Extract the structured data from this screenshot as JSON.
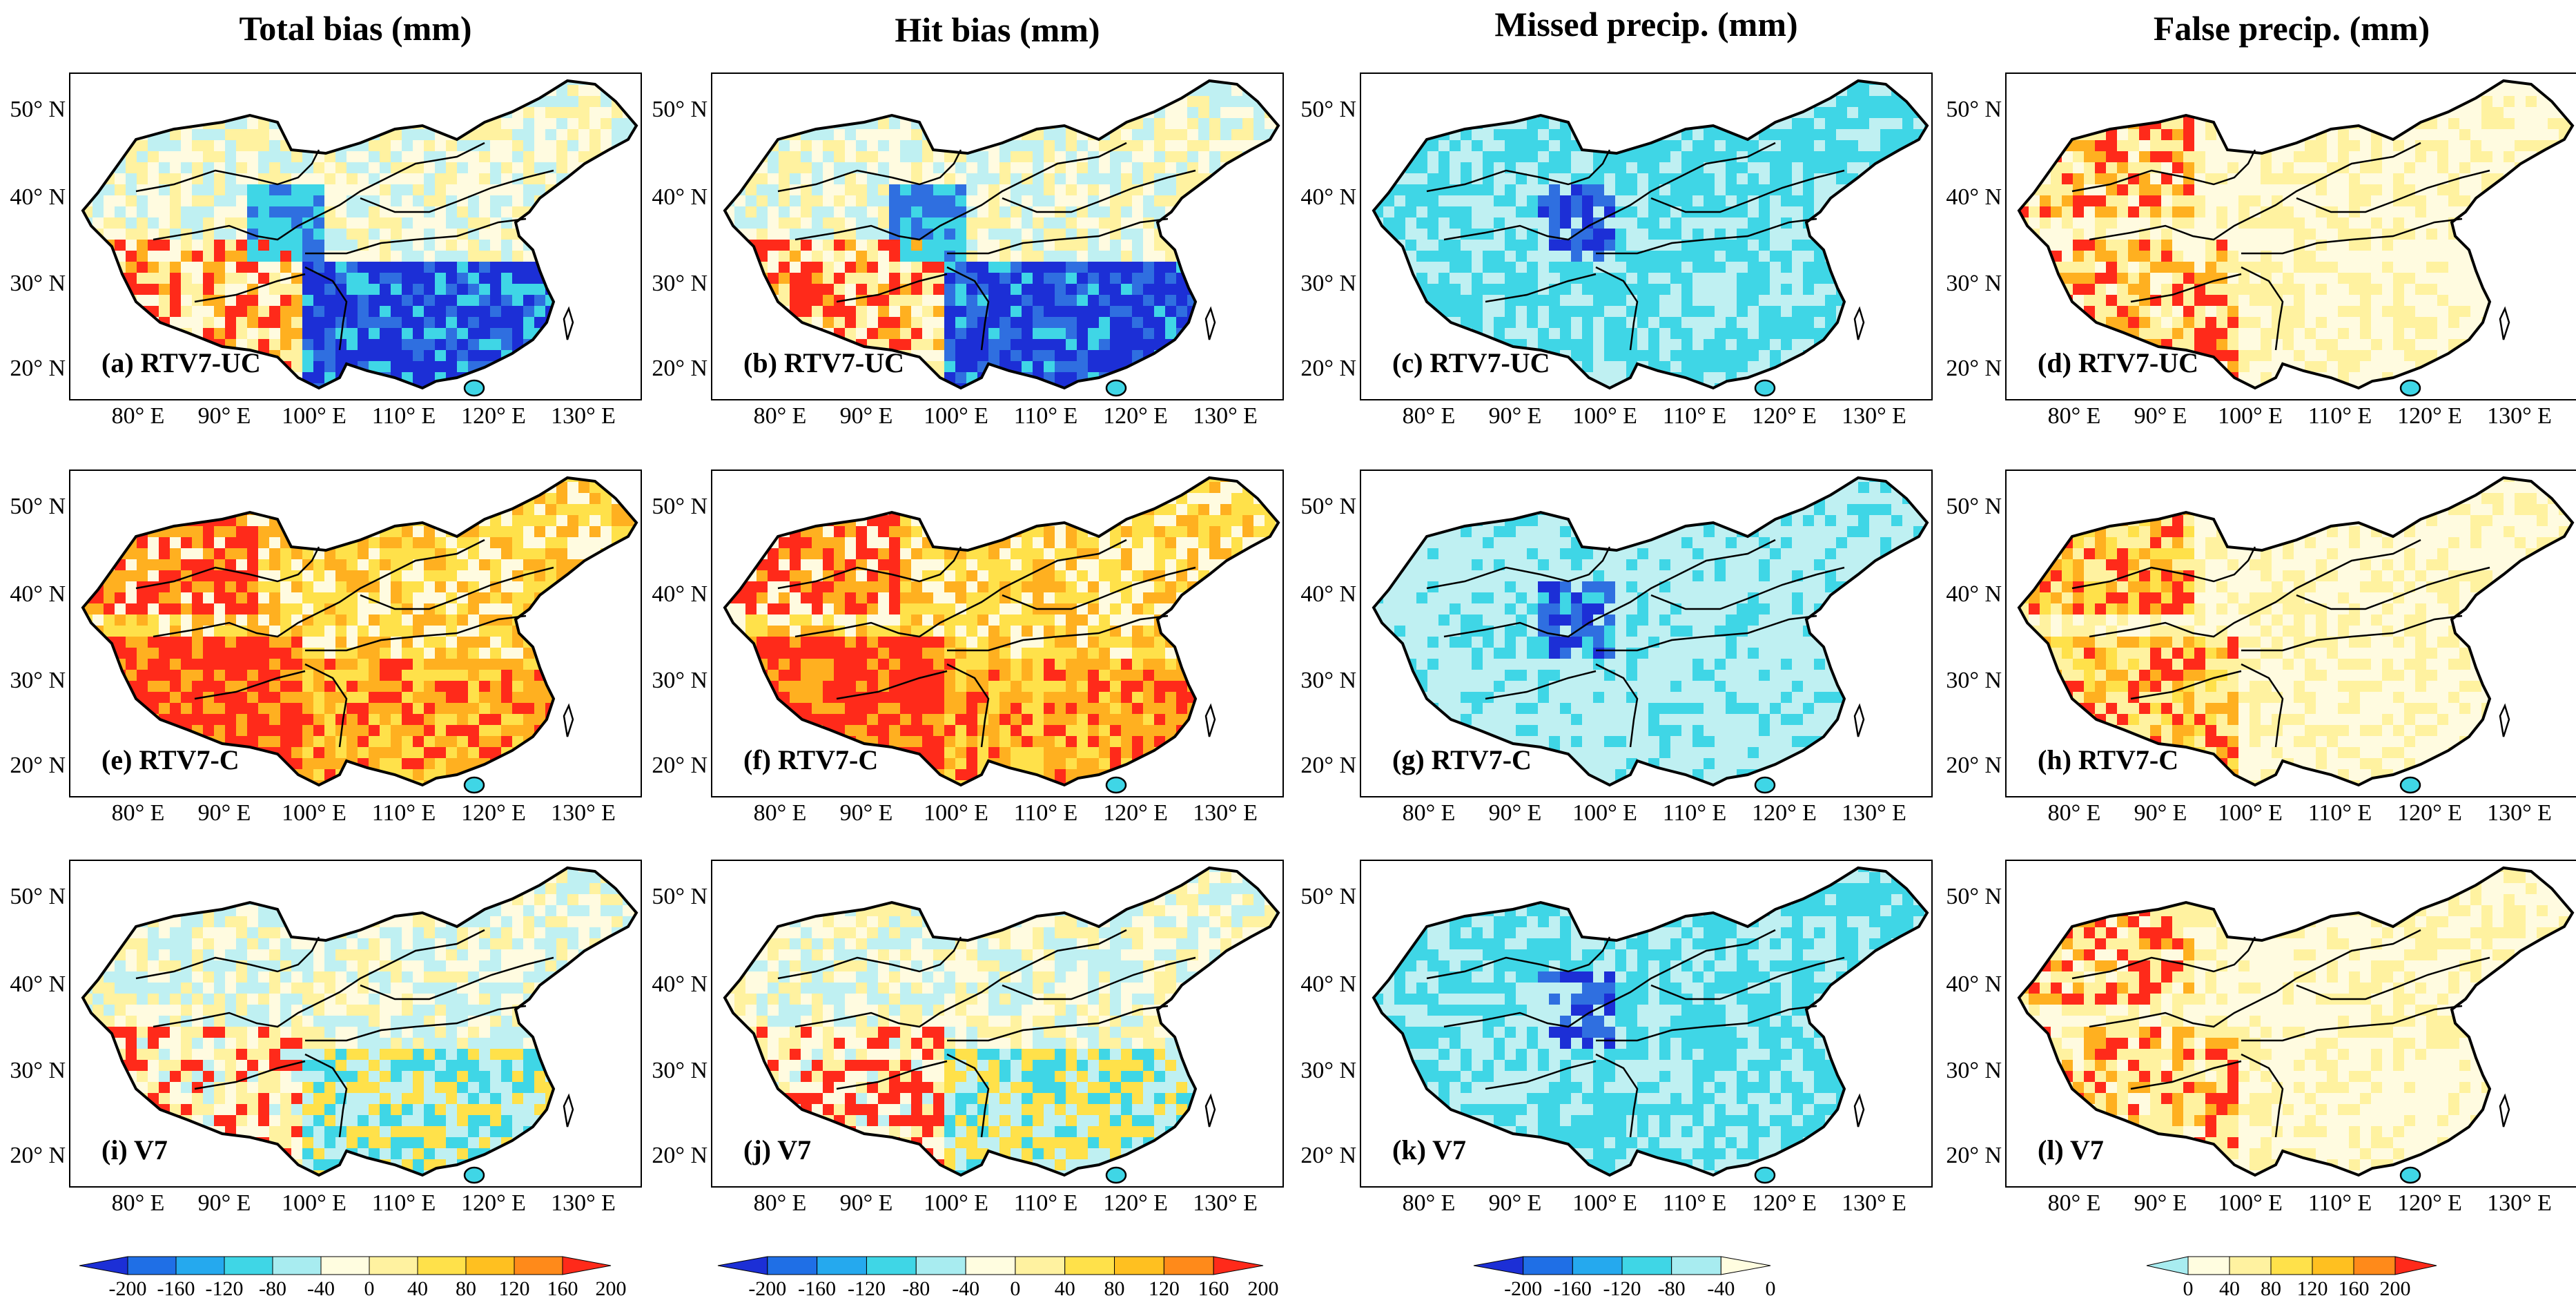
{
  "column_titles": [
    "Total bias (mm)",
    "Hit bias (mm)",
    "Missed precip. (mm)",
    "False precip. (mm)"
  ],
  "panel_labels": [
    [
      "(a) RTV7-UC",
      "(b) RTV7-UC",
      "(c) RTV7-UC",
      "(d) RTV7-UC"
    ],
    [
      "(e) RTV7-C",
      "(f) RTV7-C",
      "(g) RTV7-C",
      "(h) RTV7-C"
    ],
    [
      "(i) V7",
      "(j) V7",
      "(k) V7",
      "(l) V7"
    ]
  ],
  "lat_labels": [
    "50° N",
    "40° N",
    "30° N",
    "20° N"
  ],
  "lon_labels": [
    "80° E",
    "90° E",
    "100° E",
    "110° E",
    "120° E",
    "130° E"
  ],
  "colorbars": [
    {
      "ticks": [
        "-200",
        "-160",
        "-120",
        "-80",
        "-40",
        "0",
        "40",
        "80",
        "120",
        "160",
        "200"
      ],
      "colors": [
        "#1c2fd6",
        "#1f6fe6",
        "#25a9ee",
        "#3fd6e6",
        "#a8ecf0",
        "#fffde0",
        "#fff2a0",
        "#ffe14a",
        "#ffc020",
        "#ff8a1a",
        "#ff2a1a"
      ]
    },
    {
      "ticks": [
        "-200",
        "-160",
        "-120",
        "-80",
        "-40",
        "0",
        "40",
        "80",
        "120",
        "160",
        "200"
      ],
      "colors": [
        "#1c2fd6",
        "#1f6fe6",
        "#25a9ee",
        "#3fd6e6",
        "#a8ecf0",
        "#fffde0",
        "#fff2a0",
        "#ffe14a",
        "#ffc020",
        "#ff8a1a",
        "#ff2a1a"
      ]
    },
    {
      "ticks": [
        "-200",
        "-160",
        "-120",
        "-80",
        "-40",
        "0"
      ],
      "colors": [
        "#1c2fd6",
        "#1f6fe6",
        "#25a9ee",
        "#3fd6e6",
        "#a8ecf0",
        "#fffde0"
      ]
    },
    {
      "ticks": [
        "0",
        "40",
        "80",
        "120",
        "160",
        "200"
      ],
      "colors": [
        "#a8ecf0",
        "#fffde0",
        "#fff2a0",
        "#ffe14a",
        "#ffc020",
        "#ff8a1a",
        "#ff2a1a"
      ]
    }
  ],
  "palette": {
    "strong_blue": "#1c2fd6",
    "blue": "#2f6fe0",
    "cyan": "#3fd6e6",
    "light_cyan": "#bff0f2",
    "pale": "#fffbe0",
    "light_yellow": "#fff2a0",
    "yellow": "#ffe14a",
    "orange": "#ffb020",
    "red": "#ff2a1a"
  }
}
